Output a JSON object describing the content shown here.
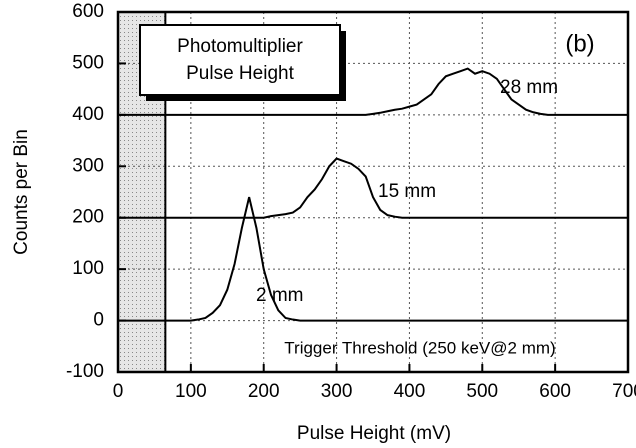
{
  "chart_data": {
    "type": "line",
    "x_label": "Pulse Height (mV)",
    "y_label": "Counts per Bin",
    "box_title": [
      "Photomultiplier",
      "Pulse Height"
    ],
    "panel_label": "(b)",
    "threshold_label": "Trigger Threshold (250 keV@2 mm)",
    "threshold_x": 65,
    "x": [
      0,
      10,
      20,
      30,
      40,
      50,
      60,
      70,
      80,
      90,
      100,
      110,
      120,
      130,
      140,
      150,
      160,
      170,
      180,
      190,
      200,
      210,
      220,
      230,
      240,
      250,
      260,
      270,
      280,
      290,
      300,
      310,
      320,
      330,
      340,
      350,
      360,
      370,
      380,
      390,
      400,
      410,
      420,
      430,
      440,
      450,
      460,
      470,
      480,
      490,
      500,
      510,
      520,
      530,
      540,
      550,
      560,
      570,
      580,
      590,
      600,
      610,
      620,
      630,
      640,
      650,
      660,
      670,
      680,
      690,
      700
    ],
    "series": [
      {
        "name": "2 mm",
        "color": "#000000",
        "values": [
          0,
          0,
          0,
          0,
          0,
          0,
          0,
          0,
          0,
          0,
          0,
          2,
          5,
          15,
          30,
          60,
          110,
          180,
          240,
          180,
          100,
          50,
          20,
          5,
          2,
          0,
          0,
          0,
          0,
          0,
          0,
          0,
          0,
          0,
          0,
          0,
          0,
          0,
          0,
          0,
          0,
          0,
          0,
          0,
          0,
          0,
          0,
          0,
          0,
          0,
          0,
          0,
          0,
          0,
          0,
          0,
          0,
          0,
          0,
          0,
          0,
          0,
          0,
          0,
          0,
          0,
          0,
          0,
          0,
          0,
          0
        ]
      },
      {
        "name": "15 mm",
        "color": "#000000",
        "values": [
          200,
          200,
          200,
          200,
          200,
          200,
          200,
          200,
          200,
          200,
          200,
          200,
          200,
          200,
          200,
          200,
          200,
          200,
          200,
          200,
          200,
          203,
          205,
          207,
          210,
          220,
          240,
          255,
          275,
          300,
          315,
          310,
          305,
          295,
          280,
          240,
          215,
          205,
          202,
          200,
          200,
          200,
          200,
          200,
          200,
          200,
          200,
          200,
          200,
          200,
          200,
          200,
          200,
          200,
          200,
          200,
          200,
          200,
          200,
          200,
          200,
          200,
          200,
          200,
          200,
          200,
          200,
          200,
          200,
          200,
          200
        ]
      },
      {
        "name": "28 mm",
        "color": "#000000",
        "values": [
          400,
          400,
          400,
          400,
          400,
          400,
          400,
          400,
          400,
          400,
          400,
          400,
          400,
          400,
          400,
          400,
          400,
          400,
          400,
          400,
          400,
          400,
          400,
          400,
          400,
          400,
          400,
          400,
          400,
          400,
          400,
          400,
          400,
          400,
          400,
          402,
          404,
          407,
          410,
          412,
          416,
          420,
          430,
          440,
          460,
          475,
          480,
          485,
          490,
          480,
          485,
          480,
          470,
          450,
          430,
          420,
          410,
          405,
          402,
          400,
          400,
          400,
          400,
          400,
          400,
          400,
          400,
          400,
          400,
          400,
          400
        ]
      }
    ],
    "xlim": [
      0,
      700
    ],
    "xticks": [
      0,
      100,
      200,
      300,
      400,
      500,
      600,
      700
    ],
    "ylim": [
      -100,
      600
    ],
    "yticks": [
      -100,
      0,
      100,
      200,
      300,
      400,
      500,
      600
    ],
    "grid": true
  }
}
